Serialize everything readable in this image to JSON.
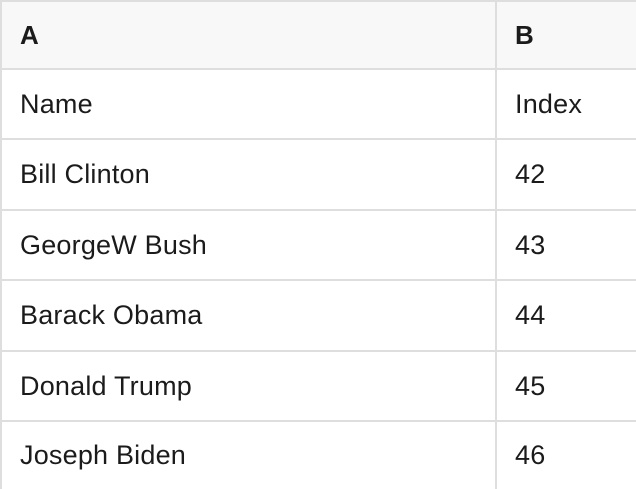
{
  "table": {
    "columns": [
      {
        "label": "A"
      },
      {
        "label": "B"
      }
    ],
    "rows": [
      [
        "Name",
        "Index"
      ],
      [
        "Bill Clinton",
        "42"
      ],
      [
        "GeorgeW Bush",
        "43"
      ],
      [
        "Barack Obama",
        "44"
      ],
      [
        "Donald Trump",
        "45"
      ],
      [
        "Joseph Biden",
        "46"
      ]
    ],
    "colors": {
      "header_bg": "#f8f8f8",
      "border": "#dedede",
      "text": "#1b1b1b",
      "row_bg": "#ffffff"
    }
  }
}
